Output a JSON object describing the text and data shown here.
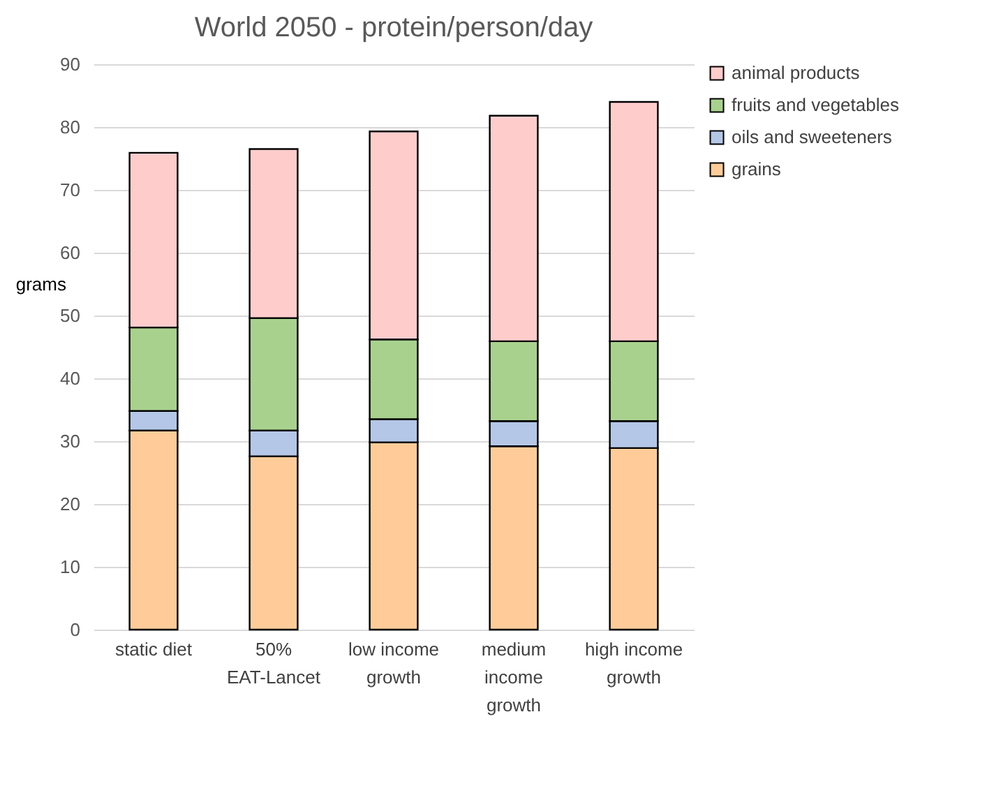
{
  "chart_data": {
    "type": "bar",
    "title": "World 2050 - protein/person/day",
    "ylabel": "grams",
    "categories": [
      "static diet",
      "50% EAT-Lancet",
      "low income growth",
      "medium income growth",
      "high income growth"
    ],
    "stacked": true,
    "series": [
      {
        "name": "grains",
        "color": "#ffcc99",
        "values": [
          31.7,
          27.6,
          29.8,
          29.2,
          28.9
        ]
      },
      {
        "name": "oils and sweeteners",
        "color": "#b4c7e7",
        "values": [
          3.1,
          4.1,
          3.7,
          4.0,
          4.3
        ]
      },
      {
        "name": "fruits and vegetables",
        "color": "#a9d18e",
        "values": [
          13.3,
          17.9,
          12.7,
          12.7,
          12.7
        ]
      },
      {
        "name": "animal products",
        "color": "#ffcccc",
        "values": [
          27.8,
          26.9,
          33.1,
          35.9,
          38.1
        ]
      }
    ],
    "ylim": [
      0,
      90
    ],
    "yticks": [
      0,
      10,
      20,
      30,
      40,
      50,
      60,
      70,
      80,
      90
    ],
    "grid": "y",
    "legend": "right"
  }
}
